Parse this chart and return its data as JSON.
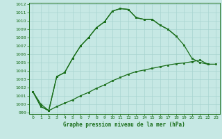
{
  "title": "Graphe pression niveau de la mer (hPa)",
  "bg_color": "#c6e8e4",
  "grid_color": "#a8d4d0",
  "line_color": "#1a6e1a",
  "xlim": [
    -0.5,
    23.5
  ],
  "ylim": [
    998.8,
    1012.2
  ],
  "xticks": [
    0,
    1,
    2,
    3,
    4,
    5,
    6,
    7,
    8,
    9,
    10,
    11,
    12,
    13,
    14,
    15,
    16,
    17,
    18,
    19,
    20,
    21,
    22,
    23
  ],
  "yticks": [
    999,
    1000,
    1001,
    1002,
    1003,
    1004,
    1005,
    1006,
    1007,
    1008,
    1009,
    1010,
    1011,
    1012
  ],
  "series1_x": [
    0,
    1,
    2,
    3,
    4,
    5,
    6,
    7,
    8,
    9,
    10,
    11,
    12,
    13,
    14,
    15,
    16,
    17,
    18
  ],
  "series1_y": [
    1001.5,
    999.7,
    999.2,
    1003.3,
    1003.8,
    1005.5,
    1007.0,
    1008.0,
    1009.2,
    1009.9,
    1011.2,
    1011.5,
    1011.4,
    1010.4,
    1010.2,
    1010.2,
    1009.5,
    1009.0,
    1008.2
  ],
  "series2_x": [
    0,
    1,
    2,
    3,
    4,
    5,
    6,
    7,
    8,
    9,
    10,
    11,
    12,
    13,
    14,
    15,
    16,
    17,
    18,
    19,
    20,
    21,
    22
  ],
  "series2_y": [
    1001.5,
    999.7,
    999.2,
    1003.3,
    1003.8,
    1005.5,
    1007.0,
    1008.0,
    1009.2,
    1009.9,
    1011.2,
    1011.5,
    1011.4,
    1010.4,
    1010.2,
    1010.2,
    1009.5,
    1009.0,
    1008.2,
    1007.1,
    1005.5,
    1005.0,
    1004.8
  ],
  "series3_x": [
    0,
    1,
    2,
    3,
    4,
    5,
    6,
    7,
    8,
    9,
    10,
    11,
    12,
    13,
    14,
    15,
    16,
    17,
    18,
    19,
    20,
    21,
    22,
    23
  ],
  "series3_y": [
    1001.5,
    1000.0,
    999.2,
    999.7,
    1000.1,
    1000.5,
    1001.0,
    1001.4,
    1001.9,
    1002.3,
    1002.8,
    1003.2,
    1003.6,
    1003.9,
    1004.1,
    1004.3,
    1004.5,
    1004.7,
    1004.85,
    1004.95,
    1005.1,
    1005.3,
    1004.8,
    1004.8
  ]
}
